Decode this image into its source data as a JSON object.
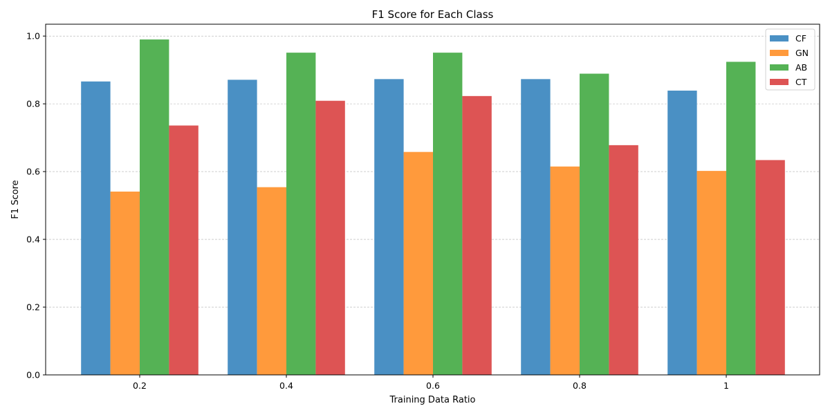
{
  "chart_data": {
    "type": "bar",
    "title": "F1 Score for Each Class",
    "xlabel": "Training Data Ratio",
    "ylabel": "F1 Score",
    "categories": [
      "0.2",
      "0.4",
      "0.6",
      "0.8",
      "1"
    ],
    "series": [
      {
        "name": "CF",
        "color": "#4a90c4",
        "values": [
          0.866,
          0.871,
          0.873,
          0.873,
          0.839
        ]
      },
      {
        "name": "GN",
        "color": "#ff9a3c",
        "values": [
          0.541,
          0.554,
          0.658,
          0.615,
          0.602
        ]
      },
      {
        "name": "AB",
        "color": "#55b255",
        "values": [
          0.99,
          0.951,
          0.951,
          0.889,
          0.924
        ]
      },
      {
        "name": "CT",
        "color": "#dd5454",
        "values": [
          0.736,
          0.809,
          0.823,
          0.678,
          0.634
        ]
      }
    ],
    "ylim": [
      0,
      1.035
    ],
    "yticks": [
      "0.0",
      "0.2",
      "0.4",
      "0.6",
      "0.8",
      "1.0"
    ],
    "grid": "y-dashed",
    "legend_position": "top-right"
  }
}
